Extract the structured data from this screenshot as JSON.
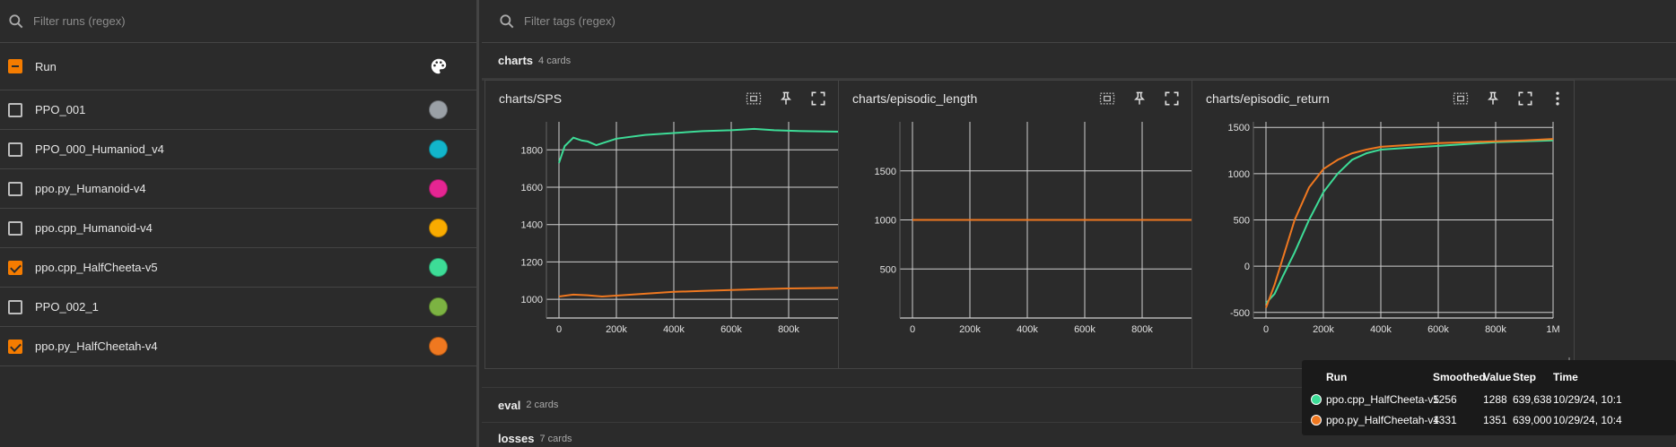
{
  "sidebar": {
    "filter_placeholder": "Filter runs (regex)",
    "header_label": "Run",
    "runs": [
      {
        "label": "PPO_001",
        "checked": false,
        "color": "#9aa0a6"
      },
      {
        "label": "PPO_000_Humaniod_v4",
        "checked": false,
        "color": "#12b5cb"
      },
      {
        "label": "ppo.py_Humanoid-v4",
        "checked": false,
        "color": "#e52592"
      },
      {
        "label": "ppo.cpp_Humanoid-v4",
        "checked": false,
        "color": "#f9ab00"
      },
      {
        "label": "ppo.cpp_HalfCheeta-v5",
        "checked": true,
        "color": "#3ddc97"
      },
      {
        "label": "PPO_002_1",
        "checked": false,
        "color": "#7cb342"
      },
      {
        "label": "ppo.py_HalfCheetah-v4",
        "checked": true,
        "color": "#ef7820"
      }
    ]
  },
  "main": {
    "filter_placeholder": "Filter tags (regex)",
    "section_charts": {
      "title": "charts",
      "count": "4 cards"
    },
    "section_eval": {
      "title": "eval",
      "count": "2 cards"
    },
    "section_losses": {
      "title": "losses",
      "count": "7 cards"
    },
    "cards": [
      {
        "title": "charts/SPS"
      },
      {
        "title": "charts/episodic_length"
      },
      {
        "title": "charts/episodic_return"
      }
    ]
  },
  "colors": {
    "teal": "#3ddc97",
    "orange": "#ef7820",
    "grid": "#cfcfcf"
  },
  "chart_data": [
    {
      "type": "line",
      "title": "charts/SPS",
      "x_ticks": [
        "0",
        "200k",
        "400k",
        "600k",
        "800k",
        "1M"
      ],
      "y_ticks": [
        "1000",
        "1200",
        "1400",
        "1600",
        "1800"
      ],
      "xlim": [
        0,
        1000000
      ],
      "ylim": [
        900,
        1950
      ],
      "series": [
        {
          "color": "#3ddc97",
          "x": [
            0,
            20000,
            50000,
            80000,
            100000,
            130000,
            160000,
            200000,
            300000,
            400000,
            500000,
            600000,
            680000,
            750000,
            850000,
            1000000
          ],
          "y": [
            1730,
            1820,
            1865,
            1850,
            1845,
            1825,
            1840,
            1860,
            1880,
            1890,
            1900,
            1905,
            1912,
            1905,
            1900,
            1897
          ]
        },
        {
          "color": "#ef7820",
          "x": [
            0,
            50000,
            100000,
            150000,
            200000,
            300000,
            400000,
            500000,
            600000,
            700000,
            800000,
            900000,
            1000000
          ],
          "y": [
            1015,
            1025,
            1022,
            1015,
            1020,
            1030,
            1040,
            1045,
            1050,
            1055,
            1058,
            1060,
            1062
          ]
        }
      ]
    },
    {
      "type": "line",
      "title": "charts/episodic_length",
      "x_ticks": [
        "0",
        "200k",
        "400k",
        "600k",
        "800k",
        "1M"
      ],
      "y_ticks": [
        "500",
        "1000",
        "1500"
      ],
      "xlim": [
        0,
        1000000
      ],
      "ylim": [
        0,
        2000
      ],
      "series": [
        {
          "color": "#ef7820",
          "x": [
            0,
            1000000
          ],
          "y": [
            1000,
            1000
          ]
        }
      ]
    },
    {
      "type": "line",
      "title": "charts/episodic_return",
      "x_ticks": [
        "0",
        "200k",
        "400k",
        "600k",
        "800k",
        "1M"
      ],
      "y_ticks": [
        "-500",
        "0",
        "500",
        "1000",
        "1500"
      ],
      "xlim": [
        0,
        1000000
      ],
      "ylim": [
        -560,
        1560
      ],
      "series": [
        {
          "color": "#3ddc97",
          "x": [
            0,
            30000,
            60000,
            100000,
            150000,
            200000,
            250000,
            300000,
            350000,
            400000,
            500000,
            600000,
            700000,
            800000,
            900000,
            1000000
          ],
          "y": [
            -400,
            -300,
            -100,
            150,
            500,
            800,
            1000,
            1150,
            1220,
            1260,
            1280,
            1300,
            1320,
            1340,
            1350,
            1360
          ]
        },
        {
          "color": "#ef7820",
          "x": [
            0,
            30000,
            60000,
            100000,
            150000,
            200000,
            250000,
            300000,
            350000,
            400000,
            500000,
            600000,
            700000,
            800000,
            900000,
            1000000
          ],
          "y": [
            -450,
            -200,
            100,
            500,
            850,
            1050,
            1150,
            1220,
            1260,
            1290,
            1310,
            1330,
            1340,
            1350,
            1360,
            1375
          ]
        }
      ]
    }
  ],
  "tooltip": {
    "headers": [
      "Run",
      "Smoothed",
      "Value",
      "Step",
      "Time"
    ],
    "rows": [
      {
        "color": "#3ddc97",
        "run": "ppo.cpp_HalfCheeta-v5",
        "smoothed": "1256",
        "value": "1288",
        "step": "639,638",
        "time": "10/29/24, 10:1"
      },
      {
        "color": "#ef7820",
        "run": "ppo.py_HalfCheetah-v4",
        "smoothed": "1331",
        "value": "1351",
        "step": "639,000",
        "time": "10/29/24, 10:4"
      }
    ]
  }
}
